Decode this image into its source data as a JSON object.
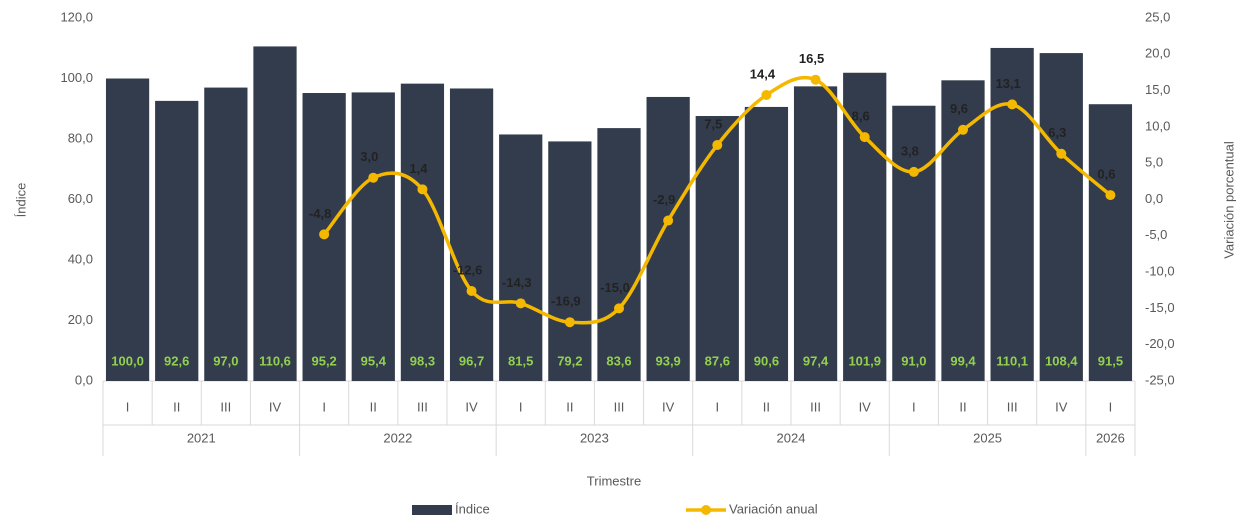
{
  "chart_data": {
    "type": "bar-line",
    "x_label": "Trimestre",
    "y_label": "Índice",
    "y2_label": "Variación porcentual",
    "groups": [
      {
        "label": "2021",
        "categories": [
          "I",
          "II",
          "III",
          "IV"
        ]
      },
      {
        "label": "2022",
        "categories": [
          "I",
          "II",
          "III",
          "IV"
        ]
      },
      {
        "label": "2023",
        "categories": [
          "I",
          "II",
          "III",
          "IV"
        ]
      },
      {
        "label": "2024",
        "categories": [
          "I",
          "II",
          "III",
          "IV"
        ]
      },
      {
        "label": "2025",
        "categories": [
          "I",
          "II",
          "III",
          "IV"
        ]
      },
      {
        "label": "2026",
        "categories": [
          "I"
        ]
      }
    ],
    "series": [
      {
        "name": "Índice",
        "type": "bar",
        "color": "#323c4c",
        "label_color": "#92d050",
        "values": [
          100.0,
          92.6,
          97.0,
          110.6,
          95.2,
          95.4,
          98.3,
          96.7,
          81.5,
          79.2,
          83.6,
          93.9,
          87.6,
          90.6,
          97.4,
          101.9,
          91.0,
          99.4,
          110.1,
          108.4,
          91.5
        ],
        "value_labels": [
          "100,0",
          "92,6",
          "97,0",
          "110,6",
          "95,2",
          "95,4",
          "98,3",
          "96,7",
          "81,5",
          "79,2",
          "83,6",
          "93,9",
          "87,6",
          "90,6",
          "97,4",
          "101,9",
          "91,0",
          "99,4",
          "110,1",
          "108,4",
          "91,5"
        ]
      },
      {
        "name": "Variación anual",
        "type": "line",
        "axis": "y2",
        "color": "#f5b800",
        "label_color": "#222222",
        "values": [
          null,
          null,
          null,
          null,
          -4.8,
          3.0,
          1.4,
          -12.6,
          -14.3,
          -16.9,
          -15.0,
          -2.9,
          7.5,
          14.4,
          16.5,
          8.6,
          3.8,
          9.6,
          13.1,
          6.3,
          0.6
        ],
        "value_labels": [
          null,
          null,
          null,
          null,
          "-4,8",
          "3,0",
          "1,4",
          "-12,6",
          "-14,3",
          "-16,9",
          "-15,0",
          "-2,9",
          "7,5",
          "14,4",
          "16,5",
          "8,6",
          "3,8",
          "9,6",
          "13,1",
          "6,3",
          "0,6"
        ]
      }
    ],
    "ylim": [
      0,
      120
    ],
    "yticks": [
      {
        "value": 0,
        "label": "0,0"
      },
      {
        "value": 20,
        "label": "20,0"
      },
      {
        "value": 40,
        "label": "40,0"
      },
      {
        "value": 60,
        "label": "60,0"
      },
      {
        "value": 80,
        "label": "80,0"
      },
      {
        "value": 100,
        "label": "100,0"
      },
      {
        "value": 120,
        "label": "120,0"
      }
    ],
    "y2lim": [
      -25,
      25
    ],
    "y2ticks": [
      {
        "value": -25,
        "label": "-25,0"
      },
      {
        "value": -20,
        "label": "-20,0"
      },
      {
        "value": -15,
        "label": "-15,0"
      },
      {
        "value": -10,
        "label": "-10,0"
      },
      {
        "value": -5,
        "label": "-5,0"
      },
      {
        "value": 0,
        "label": "0,0"
      },
      {
        "value": 5,
        "label": "5,0"
      },
      {
        "value": 10,
        "label": "10,0"
      },
      {
        "value": 15,
        "label": "15,0"
      },
      {
        "value": 20,
        "label": "20,0"
      },
      {
        "value": 25,
        "label": "25,0"
      }
    ],
    "legend": "bottom"
  }
}
